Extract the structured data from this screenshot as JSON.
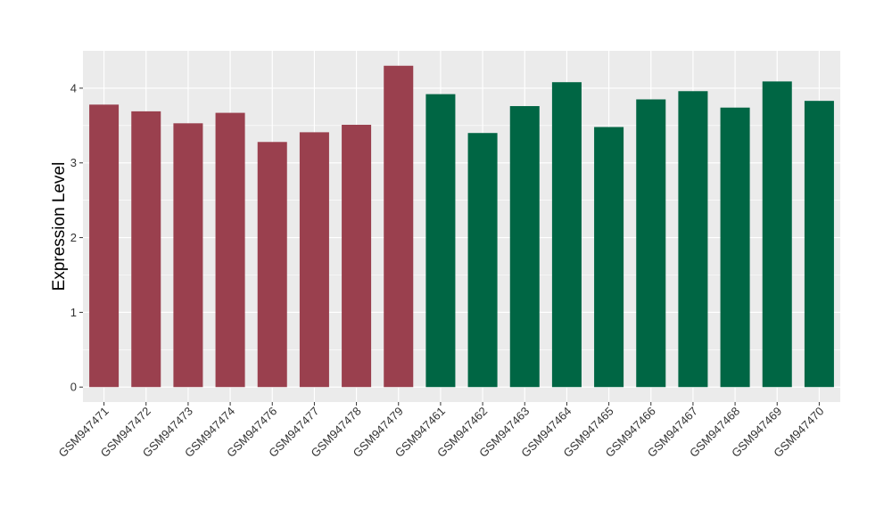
{
  "chart_data": {
    "type": "bar",
    "title": "",
    "xlabel": "",
    "ylabel": "Expression Level",
    "ylim": [
      -0.2,
      4.5
    ],
    "yticks": [
      0,
      1,
      2,
      3,
      4
    ],
    "grid": true,
    "legend": "none",
    "categories": [
      "GSM947471",
      "GSM947472",
      "GSM947473",
      "GSM947474",
      "GSM947476",
      "GSM947477",
      "GSM947478",
      "GSM947479",
      "GSM947461",
      "GSM947462",
      "GSM947463",
      "GSM947464",
      "GSM947465",
      "GSM947466",
      "GSM947467",
      "GSM947468",
      "GSM947469",
      "GSM947470"
    ],
    "values": [
      3.78,
      3.69,
      3.53,
      3.67,
      3.28,
      3.41,
      3.51,
      4.3,
      3.92,
      3.4,
      3.76,
      4.08,
      3.48,
      3.85,
      3.96,
      3.74,
      4.09,
      3.83
    ],
    "bar_colors": [
      "#9a404e",
      "#9a404e",
      "#9a404e",
      "#9a404e",
      "#9a404e",
      "#9a404e",
      "#9a404e",
      "#9a404e",
      "#006644",
      "#006644",
      "#006644",
      "#006644",
      "#006644",
      "#006644",
      "#006644",
      "#006644",
      "#006644",
      "#006644"
    ],
    "panel_background": "#ebebeb",
    "grid_color": "#ffffff"
  }
}
